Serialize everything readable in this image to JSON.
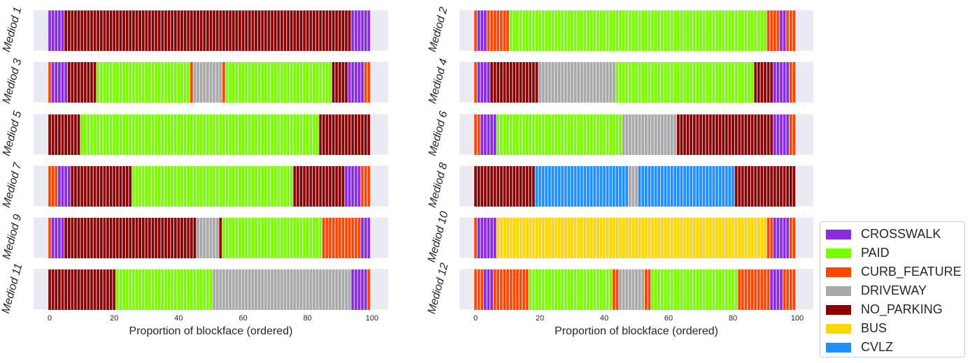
{
  "colors": {
    "CROSSWALK": "#8a2be2",
    "PAID": "#7cfc00",
    "CURB_FEATURE": "#ff4500",
    "DRIVEWAY": "#a9a9a9",
    "NO_PARKING": "#8b0000",
    "BUS": "#ffd700",
    "CVLZ": "#1e90ff"
  },
  "legend": [
    "CROSSWALK",
    "PAID",
    "CURB_FEATURE",
    "DRIVEWAY",
    "NO_PARKING",
    "BUS",
    "CVLZ"
  ],
  "chart_data": {
    "type": "bar",
    "xlabel": "Proportion of blockface (ordered)",
    "xlim": [
      -5,
      105
    ],
    "xticks": [
      0,
      20,
      40,
      60,
      80,
      100
    ],
    "grid": true,
    "legend_placement": "lower-right outside",
    "panels": [
      {
        "label": "Mediod 1",
        "segments": [
          [
            "CROSSWALK",
            5
          ],
          [
            "NO_PARKING",
            89
          ],
          [
            "CROSSWALK",
            6
          ]
        ]
      },
      {
        "label": "Mediod 2",
        "segments": [
          [
            "CURB_FEATURE",
            1
          ],
          [
            "CROSSWALK",
            3
          ],
          [
            "CURB_FEATURE",
            7
          ],
          [
            "PAID",
            80
          ],
          [
            "CURB_FEATURE",
            4
          ],
          [
            "CROSSWALK",
            2
          ],
          [
            "CURB_FEATURE",
            3
          ]
        ]
      },
      {
        "label": "Mediod 3",
        "segments": [
          [
            "CURB_FEATURE",
            1
          ],
          [
            "CROSSWALK",
            5
          ],
          [
            "NO_PARKING",
            9
          ],
          [
            "PAID",
            29
          ],
          [
            "CURB_FEATURE",
            1
          ],
          [
            "DRIVEWAY",
            9
          ],
          [
            "CURB_FEATURE",
            1
          ],
          [
            "PAID",
            33
          ],
          [
            "NO_PARKING",
            5
          ],
          [
            "CROSSWALK",
            5
          ],
          [
            "CURB_FEATURE",
            2
          ]
        ]
      },
      {
        "label": "Mediod 4",
        "segments": [
          [
            "CURB_FEATURE",
            1
          ],
          [
            "CROSSWALK",
            4
          ],
          [
            "NO_PARKING",
            15
          ],
          [
            "DRIVEWAY",
            24
          ],
          [
            "PAID",
            43
          ],
          [
            "NO_PARKING",
            6
          ],
          [
            "CROSSWALK",
            5
          ],
          [
            "CURB_FEATURE",
            2
          ]
        ]
      },
      {
        "label": "Mediod 5",
        "segments": [
          [
            "NO_PARKING",
            10
          ],
          [
            "PAID",
            74
          ],
          [
            "NO_PARKING",
            16
          ]
        ]
      },
      {
        "label": "Mediod 6",
        "segments": [
          [
            "CURB_FEATURE",
            2
          ],
          [
            "CROSSWALK",
            5
          ],
          [
            "PAID",
            39
          ],
          [
            "DRIVEWAY",
            17
          ],
          [
            "NO_PARKING",
            30
          ],
          [
            "CROSSWALK",
            5
          ],
          [
            "CURB_FEATURE",
            2
          ]
        ]
      },
      {
        "label": "Mediod 7",
        "segments": [
          [
            "CURB_FEATURE",
            3
          ],
          [
            "CROSSWALK",
            4
          ],
          [
            "NO_PARKING",
            19
          ],
          [
            "PAID",
            50
          ],
          [
            "NO_PARKING",
            16
          ],
          [
            "CROSSWALK",
            5
          ],
          [
            "CURB_FEATURE",
            3
          ]
        ]
      },
      {
        "label": "Mediod 8",
        "segments": [
          [
            "NO_PARKING",
            19
          ],
          [
            "CVLZ",
            29
          ],
          [
            "DRIVEWAY",
            3
          ],
          [
            "CVLZ",
            30
          ],
          [
            "NO_PARKING",
            19
          ]
        ]
      },
      {
        "label": "Mediod 9",
        "segments": [
          [
            "CURB_FEATURE",
            1
          ],
          [
            "CROSSWALK",
            4
          ],
          [
            "NO_PARKING",
            41
          ],
          [
            "DRIVEWAY",
            7
          ],
          [
            "NO_PARKING",
            1
          ],
          [
            "PAID",
            31
          ],
          [
            "CURB_FEATURE",
            12
          ],
          [
            "CROSSWALK",
            3
          ]
        ]
      },
      {
        "label": "Mediod 10",
        "segments": [
          [
            "CURB_FEATURE",
            1
          ],
          [
            "CROSSWALK",
            6
          ],
          [
            "BUS",
            84
          ],
          [
            "CURB_FEATURE",
            2
          ],
          [
            "CROSSWALK",
            5
          ],
          [
            "CURB_FEATURE",
            2
          ]
        ]
      },
      {
        "label": "Mediod 11",
        "segments": [
          [
            "NO_PARKING",
            21
          ],
          [
            "PAID",
            30
          ],
          [
            "DRIVEWAY",
            43
          ],
          [
            "CROSSWALK",
            5
          ],
          [
            "CURB_FEATURE",
            1
          ]
        ]
      },
      {
        "label": "Mediod 12",
        "segments": [
          [
            "CURB_FEATURE",
            3
          ],
          [
            "CROSSWALK",
            3
          ],
          [
            "CURB_FEATURE",
            11
          ],
          [
            "PAID",
            26
          ],
          [
            "CURB_FEATURE",
            2
          ],
          [
            "DRIVEWAY",
            8
          ],
          [
            "CURB_FEATURE",
            2
          ],
          [
            "PAID",
            27
          ],
          [
            "CURB_FEATURE",
            10
          ],
          [
            "CROSSWALK",
            4
          ],
          [
            "CURB_FEATURE",
            4
          ]
        ]
      }
    ]
  }
}
